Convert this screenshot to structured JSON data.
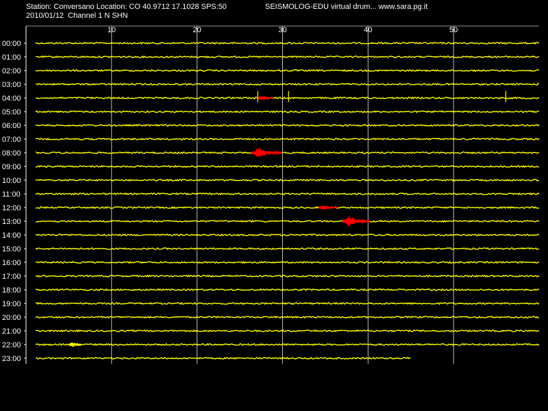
{
  "header": {
    "station_line": "Station: Conversano Location: CO 40.9712 17.1028 SPS:50",
    "date_line": "2010/01/12  Channel 1 N SHN",
    "app_title": "SEISMOLOG-EDU virtual drum... www.sara.pg.it"
  },
  "colors": {
    "background": "#000000",
    "trace": "#ffff00",
    "event": "#ff0000",
    "grid": "#ffffff"
  },
  "chart_data": {
    "type": "line",
    "title": "",
    "xlabel": "",
    "ylabel": "",
    "x_unit_minutes": true,
    "xlim": [
      0,
      60
    ],
    "x_ticks": [
      10,
      20,
      30,
      40,
      50
    ],
    "rows": [
      "00:00",
      "01:00",
      "02:00",
      "03:00",
      "04:00",
      "05:00",
      "06:00",
      "07:00",
      "08:00",
      "09:00",
      "10:00",
      "11:00",
      "12:00",
      "13:00",
      "14:00",
      "15:00",
      "16:00",
      "17:00",
      "18:00",
      "19:00",
      "20:00",
      "21:00",
      "22:00",
      "23:00"
    ],
    "last_row_end_minute": 45,
    "events": [
      {
        "row": "04:00",
        "start_minute": 27,
        "end_minute": 29,
        "color": "red",
        "peak": "small"
      },
      {
        "row": "08:00",
        "start_minute": 26.3,
        "end_minute": 30,
        "color": "red",
        "peak": "large"
      },
      {
        "row": "12:00",
        "start_minute": 34.2,
        "end_minute": 36.5,
        "color": "red",
        "peak": "small"
      },
      {
        "row": "13:00",
        "start_minute": 37,
        "end_minute": 40.2,
        "color": "red",
        "peak": "large"
      },
      {
        "row": "22:00",
        "start_minute": 5,
        "end_minute": 6.5,
        "color": "yellow",
        "peak": "medium"
      }
    ],
    "spikes": [
      {
        "row": "04:00",
        "minute": 27.1
      },
      {
        "row": "04:00",
        "minute": 30.7
      },
      {
        "row": "04:00",
        "minute": 56.1
      }
    ],
    "grid": true
  }
}
